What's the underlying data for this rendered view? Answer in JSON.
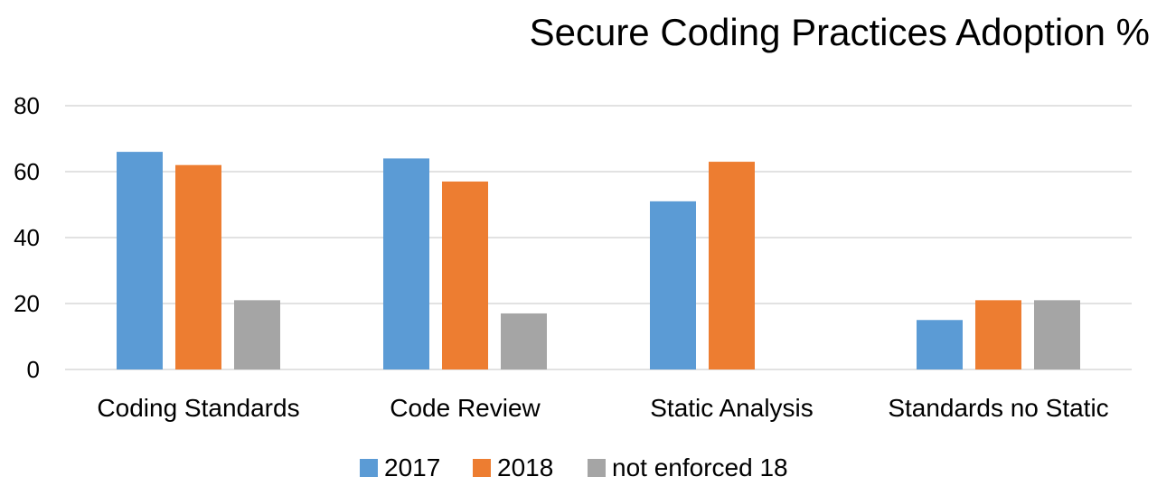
{
  "chart_data": {
    "type": "bar",
    "title": "Secure Coding Practices Adoption %",
    "xlabel": "",
    "ylabel": "",
    "ylim": [
      0,
      80
    ],
    "yticks": [
      0,
      20,
      40,
      60,
      80
    ],
    "grid": true,
    "legend_position": "bottom",
    "categories": [
      "Coding Standards",
      "Code Review",
      "Static Analysis",
      "Standards no Static"
    ],
    "series": [
      {
        "name": "2017",
        "color": "#5b9bd5",
        "values": [
          66,
          64,
          51,
          15
        ]
      },
      {
        "name": "2018",
        "color": "#ed7d31",
        "values": [
          62,
          57,
          63,
          21
        ]
      },
      {
        "name": "not enforced 18",
        "color": "#a5a5a5",
        "values": [
          21,
          17,
          null,
          21
        ]
      }
    ]
  }
}
